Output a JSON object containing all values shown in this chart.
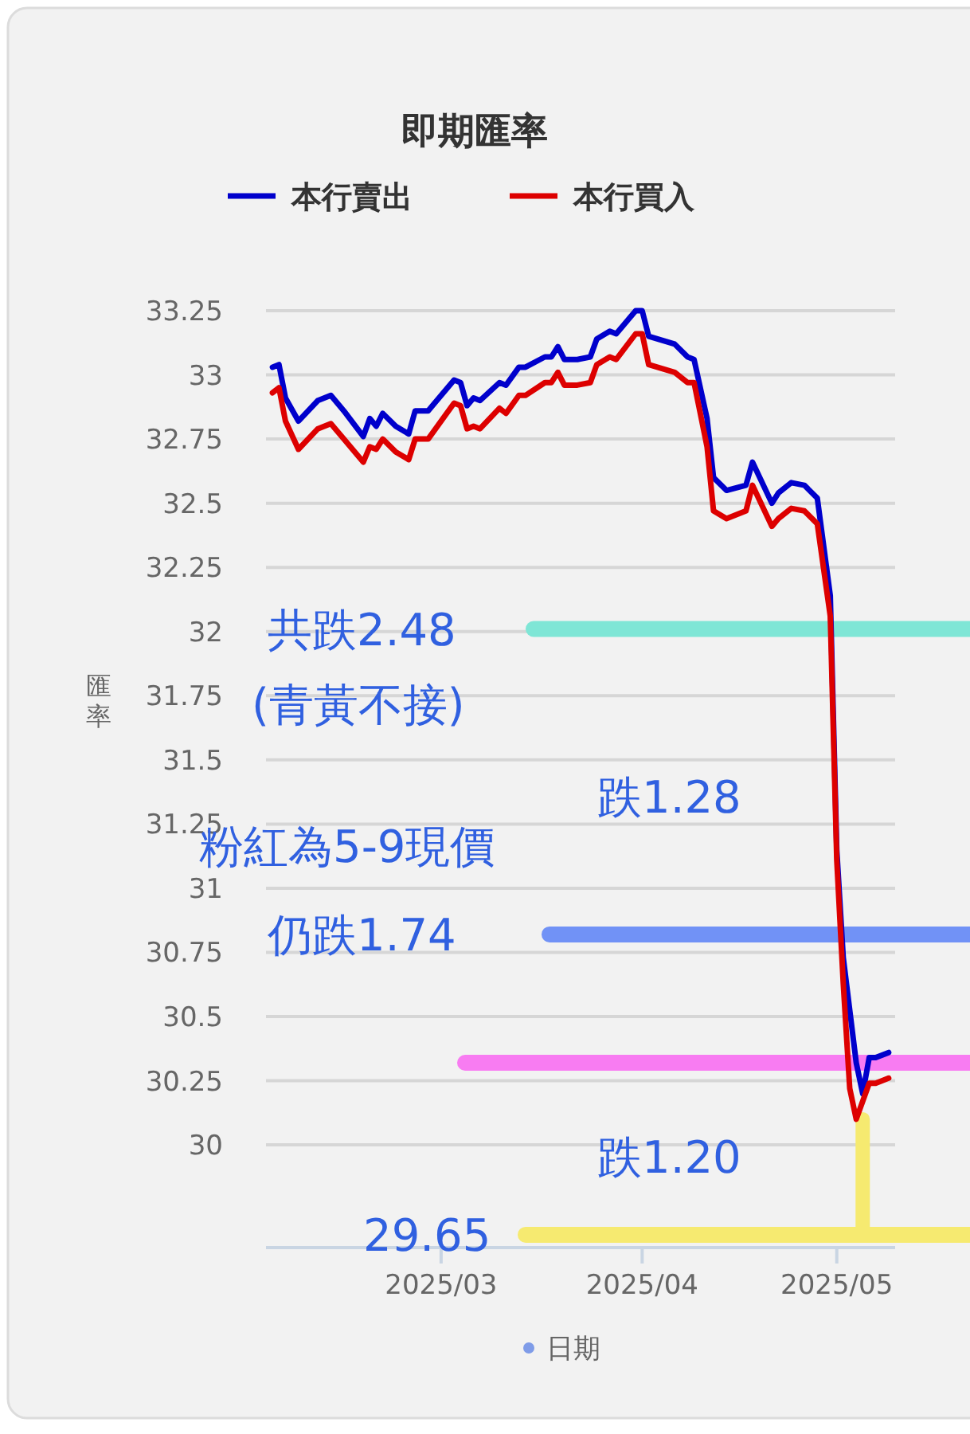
{
  "chart_data": {
    "type": "line",
    "title": "即期匯率",
    "xlabel": "日期",
    "ylabel": "匯率",
    "xlim": [
      "2025-02-02",
      "2025-05-10"
    ],
    "xticks": [
      {
        "value": "2025-03-01",
        "label": "2025/03"
      },
      {
        "value": "2025-04-01",
        "label": "2025/04"
      },
      {
        "value": "2025-05-01",
        "label": "2025/05"
      }
    ],
    "ylim": [
      29.6,
      33.25
    ],
    "yticks": [
      30,
      30.25,
      30.5,
      30.75,
      31,
      31.25,
      31.5,
      31.75,
      32,
      32.25,
      32.5,
      32.75,
      33,
      33.25
    ],
    "grid": "y",
    "legend": "top",
    "marker": "none",
    "line_style": "solid",
    "series": [
      {
        "name": "本行賣出",
        "color": "#0000cc",
        "x": [
          "2025-02-03",
          "2025-02-04",
          "2025-02-05",
          "2025-02-07",
          "2025-02-10",
          "2025-02-12",
          "2025-02-14",
          "2025-02-17",
          "2025-02-18",
          "2025-02-19",
          "2025-02-20",
          "2025-02-22",
          "2025-02-24",
          "2025-02-25",
          "2025-02-27",
          "2025-03-03",
          "2025-03-04",
          "2025-03-05",
          "2025-03-06",
          "2025-03-07",
          "2025-03-10",
          "2025-03-11",
          "2025-03-13",
          "2025-03-14",
          "2025-03-17",
          "2025-03-18",
          "2025-03-19",
          "2025-03-20",
          "2025-03-22",
          "2025-03-24",
          "2025-03-25",
          "2025-03-27",
          "2025-03-28",
          "2025-03-31",
          "2025-04-01",
          "2025-04-02",
          "2025-04-06",
          "2025-04-08",
          "2025-04-09",
          "2025-04-11",
          "2025-04-12",
          "2025-04-14",
          "2025-04-17",
          "2025-04-18",
          "2025-04-21",
          "2025-04-22",
          "2025-04-24",
          "2025-04-26",
          "2025-04-28",
          "2025-04-30",
          "2025-05-01",
          "2025-05-02",
          "2025-05-04",
          "2025-05-05",
          "2025-05-06",
          "2025-05-07",
          "2025-05-09"
        ],
        "values": [
          33.03,
          33.04,
          32.91,
          32.82,
          32.9,
          32.92,
          32.86,
          32.76,
          32.83,
          32.8,
          32.85,
          32.8,
          32.77,
          32.86,
          32.86,
          32.98,
          32.97,
          32.88,
          32.91,
          32.9,
          32.97,
          32.96,
          33.03,
          33.03,
          33.07,
          33.07,
          33.11,
          33.06,
          33.06,
          33.07,
          33.14,
          33.17,
          33.16,
          33.25,
          33.25,
          33.15,
          33.12,
          33.07,
          33.06,
          32.83,
          32.6,
          32.55,
          32.57,
          32.66,
          32.5,
          32.54,
          32.58,
          32.57,
          32.52,
          32.14,
          31.15,
          30.73,
          30.32,
          30.2,
          30.34,
          30.34,
          30.36
        ]
      },
      {
        "name": "本行買入",
        "color": "#dd0000",
        "x": [
          "2025-02-03",
          "2025-02-04",
          "2025-02-05",
          "2025-02-07",
          "2025-02-10",
          "2025-02-12",
          "2025-02-14",
          "2025-02-17",
          "2025-02-18",
          "2025-02-19",
          "2025-02-20",
          "2025-02-22",
          "2025-02-24",
          "2025-02-25",
          "2025-02-27",
          "2025-03-03",
          "2025-03-04",
          "2025-03-05",
          "2025-03-06",
          "2025-03-07",
          "2025-03-10",
          "2025-03-11",
          "2025-03-13",
          "2025-03-14",
          "2025-03-17",
          "2025-03-18",
          "2025-03-19",
          "2025-03-20",
          "2025-03-22",
          "2025-03-24",
          "2025-03-25",
          "2025-03-27",
          "2025-03-28",
          "2025-03-31",
          "2025-04-01",
          "2025-04-02",
          "2025-04-06",
          "2025-04-08",
          "2025-04-09",
          "2025-04-11",
          "2025-04-12",
          "2025-04-14",
          "2025-04-17",
          "2025-04-18",
          "2025-04-21",
          "2025-04-22",
          "2025-04-24",
          "2025-04-26",
          "2025-04-28",
          "2025-04-30",
          "2025-05-01",
          "2025-05-02",
          "2025-05-03",
          "2025-05-04",
          "2025-05-06",
          "2025-05-07",
          "2025-05-09"
        ],
        "values": [
          32.93,
          32.95,
          32.82,
          32.71,
          32.79,
          32.81,
          32.75,
          32.66,
          32.72,
          32.71,
          32.75,
          32.7,
          32.67,
          32.75,
          32.75,
          32.89,
          32.88,
          32.79,
          32.8,
          32.79,
          32.87,
          32.85,
          32.92,
          32.92,
          32.97,
          32.97,
          33.01,
          32.96,
          32.96,
          32.97,
          33.04,
          33.07,
          33.06,
          33.16,
          33.16,
          33.04,
          33.01,
          32.97,
          32.97,
          32.72,
          32.47,
          32.44,
          32.47,
          32.57,
          32.41,
          32.44,
          32.48,
          32.47,
          32.42,
          32.06,
          31.11,
          30.63,
          30.22,
          30.1,
          30.24,
          30.24,
          30.26
        ]
      },
      {
        "color": "#f6ea70",
        "x": [
          "2025-05-05",
          "2025-05-05"
        ],
        "values": [
          30.1,
          29.65
        ]
      }
    ],
    "ref_lines": [
      {
        "axis": "y",
        "value": 32.01,
        "label": "共跌2.48",
        "color": "#7fe6d6"
      },
      {
        "axis": "y",
        "value": 30.82,
        "label": "仍跌1.74",
        "color": "#7192f6"
      },
      {
        "axis": "y",
        "value": 30.32,
        "color": "#f87cf2"
      },
      {
        "axis": "y",
        "value": 29.65,
        "label": "29.65",
        "color": "#f6ea70"
      }
    ],
    "annotations": [
      "(青黃不接)",
      "跌1.28",
      "粉紅為5-9現價",
      "跌1.20"
    ]
  }
}
